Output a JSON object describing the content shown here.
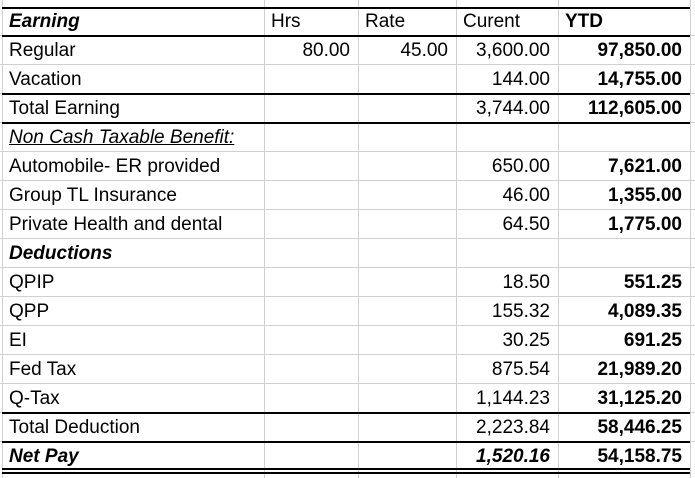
{
  "table": {
    "headers": {
      "earning": "Earning",
      "hrs": "Hrs",
      "rate": "Rate",
      "current": "Curent",
      "ytd": "YTD"
    },
    "rows": [
      {
        "label": "Regular",
        "hrs": "80.00",
        "rate": "45.00",
        "current": "3,600.00",
        "ytd": "97,850.00"
      },
      {
        "label": "Vacation",
        "current": "144.00",
        "ytd": "14,755.00"
      },
      {
        "label": "Total Earning",
        "current": "3,744.00",
        "ytd": "112,605.00"
      },
      {
        "label": "Non Cash Taxable Benefit:"
      },
      {
        "label": "Automobile- ER provided",
        "current": "650.00",
        "ytd": "7,621.00"
      },
      {
        "label": "Group TL Insurance",
        "current": "46.00",
        "ytd": "1,355.00"
      },
      {
        "label": "Private Health and dental",
        "current": "64.50",
        "ytd": "1,775.00"
      },
      {
        "label": "Deductions"
      },
      {
        "label": "QPIP",
        "current": "18.50",
        "ytd": "551.25"
      },
      {
        "label": "QPP",
        "current": "155.32",
        "ytd": "4,089.35"
      },
      {
        "label": "EI",
        "current": "30.25",
        "ytd": "691.25"
      },
      {
        "label": "Fed Tax",
        "current": "875.54",
        "ytd": "21,989.20"
      },
      {
        "label": "Q-Tax",
        "current": "1,144.23",
        "ytd": "31,125.20"
      },
      {
        "label": "Total Deduction",
        "current": "2,223.84",
        "ytd": "58,446.25"
      },
      {
        "label": "Net Pay",
        "current": "1,520.16",
        "ytd": "54,158.75"
      }
    ],
    "colors": {
      "gridline": "#d0d0d0",
      "border": "#000000",
      "text": "#000000",
      "background": "#ffffff"
    }
  }
}
